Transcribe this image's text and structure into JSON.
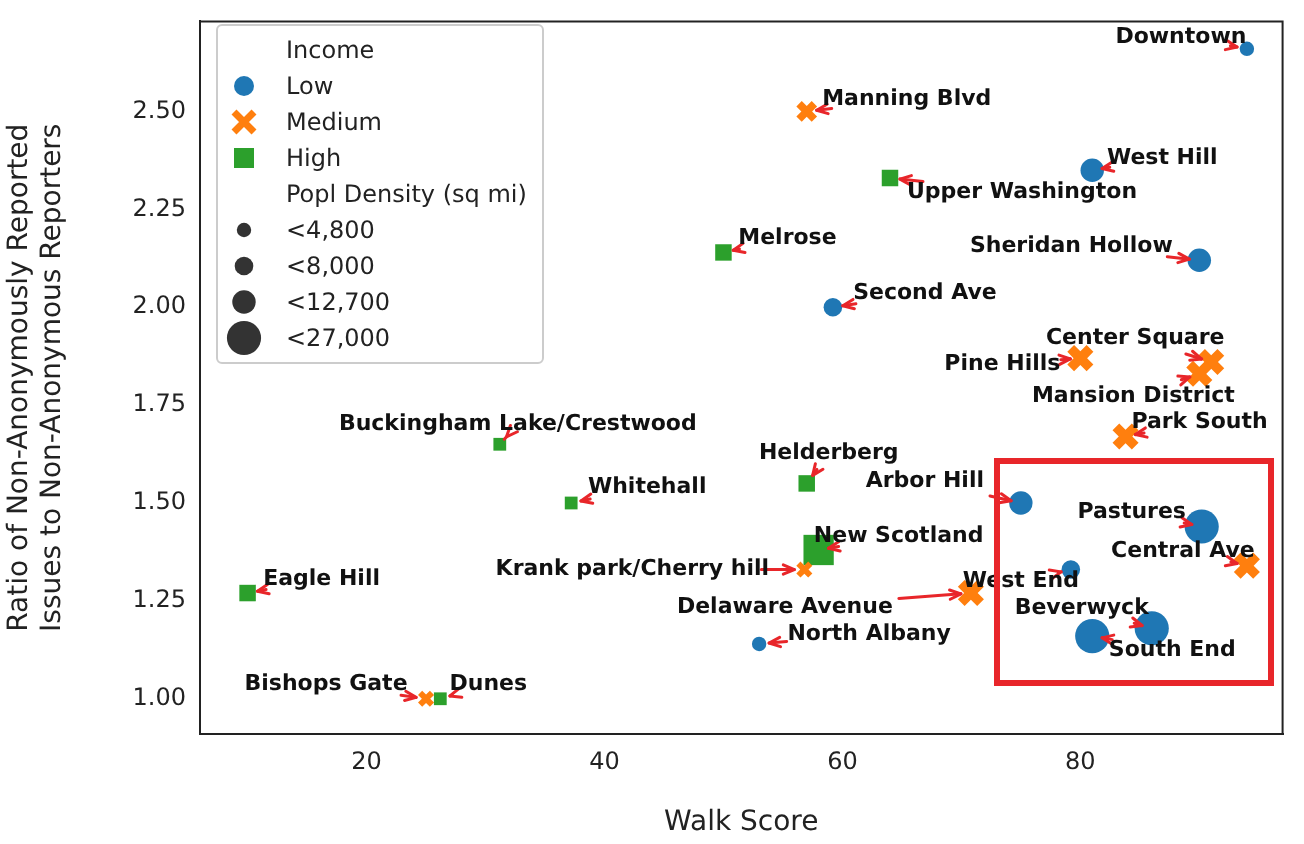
{
  "chart_data": {
    "type": "bubble",
    "xlabel": "Walk Score",
    "ylabel": "Ratio of Non-Anonymously Reported\nIssues to Non-Anonymous Reporters",
    "legend_title": "Income",
    "legend": "top left",
    "xlim": [
      6,
      97
    ],
    "ylim": [
      0.91,
      2.73
    ],
    "xticks": [
      20,
      40,
      60,
      80
    ],
    "yticks": [
      {
        "value": 1,
        "label": "1.00"
      },
      {
        "value": 1.25,
        "label": "1.25"
      },
      {
        "value": 1.5,
        "label": "1.50"
      },
      {
        "value": 1.75,
        "label": "1.75"
      },
      {
        "value": 2,
        "label": "2.00"
      },
      {
        "value": 2.25,
        "label": "2.25"
      },
      {
        "value": 2.5,
        "label": "2.50"
      }
    ],
    "grid": false,
    "size_legend": [
      {
        "value": 4800,
        "label": "<4,800"
      },
      {
        "value": 8000,
        "label": "<8,000"
      },
      {
        "value": 12700,
        "label": "<12,700"
      },
      {
        "value": 27000,
        "label": "<27,000"
      }
    ],
    "series": [
      {
        "name": "Low",
        "color": "#1f77b4",
        "marker": "circle",
        "x": [
          94,
          81,
          90,
          59.2,
          75,
          90.2,
          79.2,
          86,
          81,
          53
        ],
        "values": [
          2.66,
          2.35,
          2.12,
          2.0,
          1.5,
          1.44,
          1.33,
          1.18,
          1.16,
          1.14
        ],
        "sizes": [
          4800,
          12700,
          12700,
          8000,
          12700,
          27000,
          8000,
          27000,
          27000,
          4800
        ]
      },
      {
        "name": "Medium",
        "color": "#ff7f0e",
        "marker": "cross",
        "x": [
          57,
          80,
          91,
          90,
          83.8,
          56.8,
          94,
          70.8,
          25
        ],
        "values": [
          2.5,
          1.87,
          1.86,
          1.83,
          1.67,
          1.33,
          1.34,
          1.27,
          1.0
        ],
        "sizes": [
          8000,
          12700,
          12700,
          12700,
          12700,
          4800,
          12700,
          12700,
          4800
        ]
      },
      {
        "name": "High",
        "color": "#2ca02c",
        "marker": "square",
        "x": [
          64,
          50,
          31.2,
          57,
          37.2,
          58,
          10,
          26.2
        ],
        "values": [
          2.33,
          2.14,
          1.65,
          1.55,
          1.5,
          1.38,
          1.27,
          1.0
        ],
        "sizes": [
          8000,
          8000,
          4800,
          8000,
          4800,
          27000,
          8000,
          4800
        ]
      }
    ],
    "annotations": [
      "Popl Density (sq mi)",
      {
        "text": "Downtown",
        "x": 94,
        "y": 2.66
      },
      {
        "text": "West Hill",
        "x": 81,
        "y": 2.35
      },
      {
        "text": "Sheridan Hollow",
        "x": 90,
        "y": 2.12
      },
      {
        "text": "Second Ave",
        "x": 59.2,
        "y": 2.0
      },
      {
        "text": "Arbor Hill",
        "x": 75,
        "y": 1.5
      },
      {
        "text": "Pastures",
        "x": 90.2,
        "y": 1.44
      },
      {
        "text": "West End",
        "x": 79.2,
        "y": 1.33
      },
      {
        "text": "Beverwyck",
        "x": 86,
        "y": 1.18
      },
      {
        "text": "South End",
        "x": 81,
        "y": 1.16
      },
      {
        "text": "North Albany",
        "x": 53,
        "y": 1.14
      },
      {
        "text": "Manning Blvd",
        "x": 57,
        "y": 2.5
      },
      {
        "text": "Pine Hills",
        "x": 80,
        "y": 1.87
      },
      {
        "text": "Center Square",
        "x": 91,
        "y": 1.86
      },
      {
        "text": "Mansion District",
        "x": 90,
        "y": 1.83
      },
      {
        "text": "Park South",
        "x": 83.8,
        "y": 1.67
      },
      {
        "text": "Krank park/Cherry hill",
        "x": 56.8,
        "y": 1.33
      },
      {
        "text": "Central Ave",
        "x": 94,
        "y": 1.34
      },
      {
        "text": "Delaware Avenue",
        "x": 70.8,
        "y": 1.27
      },
      {
        "text": "Bishops Gate",
        "x": 25,
        "y": 1.0
      },
      {
        "text": "Upper Washington",
        "x": 64,
        "y": 2.33
      },
      {
        "text": "Melrose",
        "x": 50,
        "y": 2.14
      },
      {
        "text": "Buckingham Lake/Crestwood",
        "x": 31.2,
        "y": 1.65
      },
      {
        "text": "Helderberg",
        "x": 57,
        "y": 1.55
      },
      {
        "text": "Whitehall",
        "x": 37.2,
        "y": 1.5
      },
      {
        "text": "New Scotland",
        "x": 58,
        "y": 1.38
      },
      {
        "text": "Eagle Hill",
        "x": 10,
        "y": 1.27
      },
      {
        "text": "Dunes",
        "x": 26.2,
        "y": 1.0
      }
    ]
  }
}
